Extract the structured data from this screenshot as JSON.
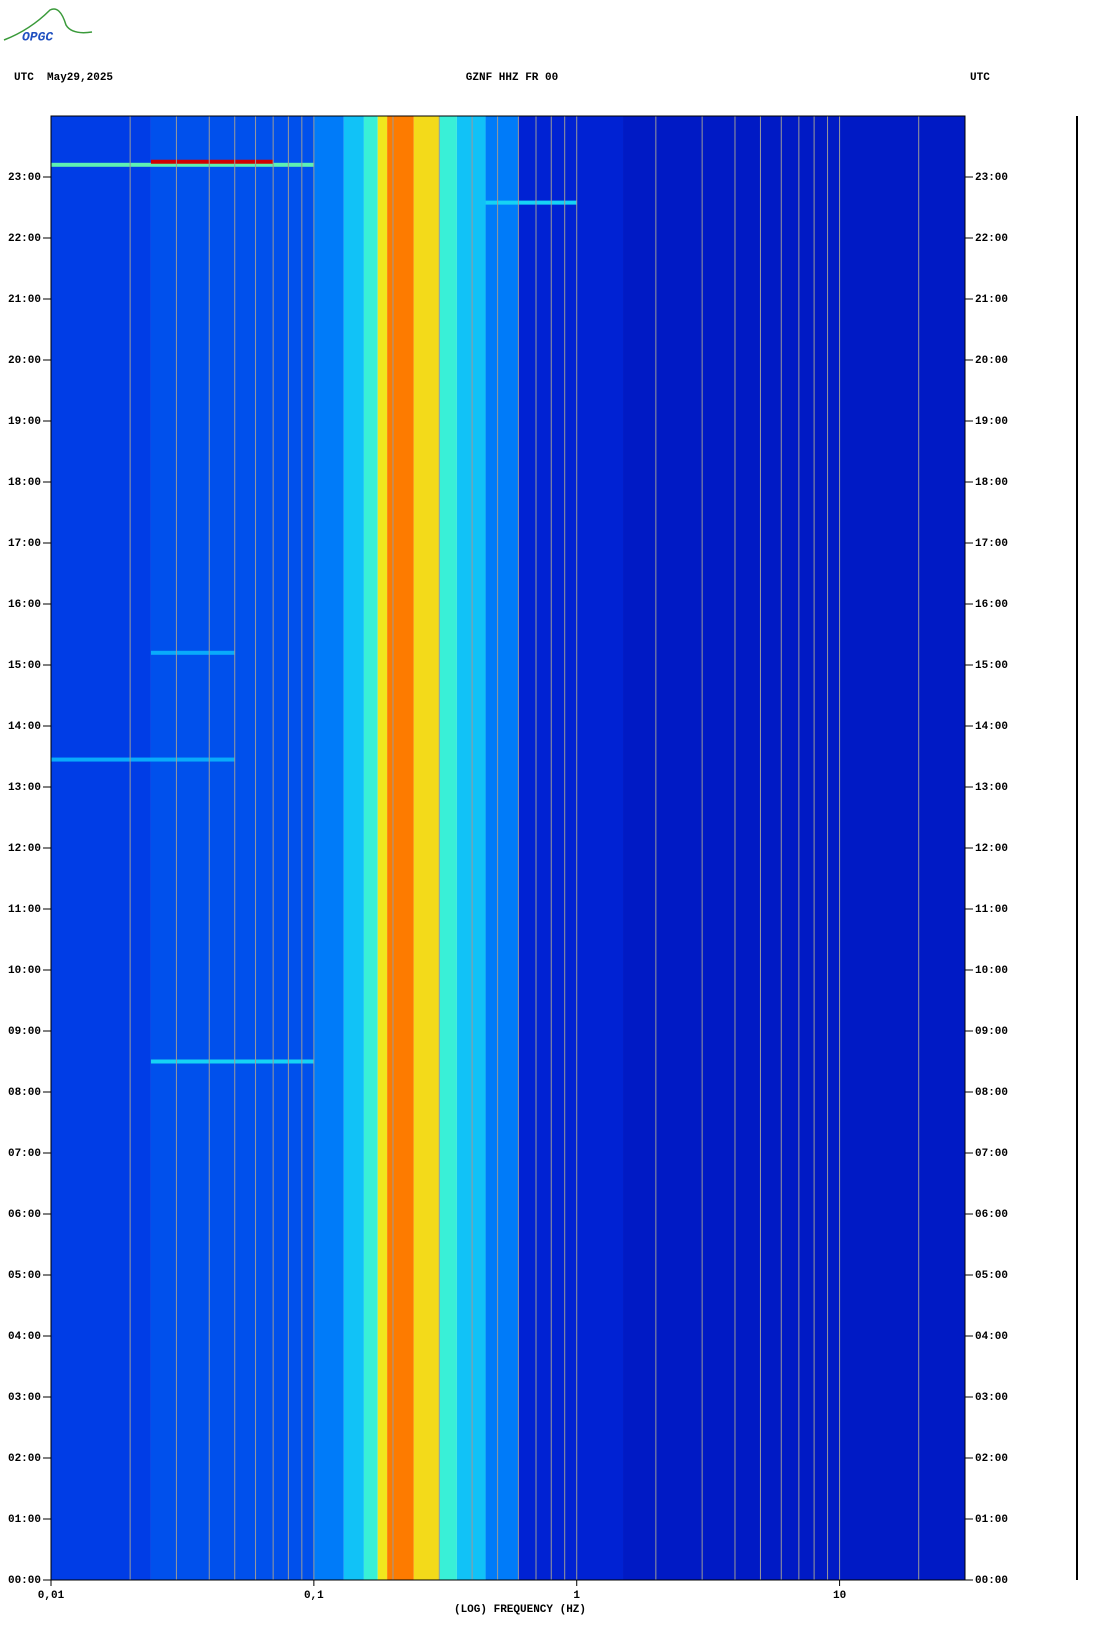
{
  "chart_data": {
    "type": "spectrogram",
    "logo": "OPGC",
    "title": "GZNF HHZ FR 00",
    "left_label": "UTC  May29,2025",
    "right_label": "UTC",
    "x_label": "(LOG) FREQUENCY (HZ)",
    "log_x": true,
    "xlim": [
      0.01,
      30
    ],
    "xticks": [
      {
        "value": 0.01,
        "label": "0,01"
      },
      {
        "value": 0.1,
        "label": "0,1"
      },
      1,
      10
    ],
    "x_grid": [
      0.02,
      0.03,
      0.04,
      0.05,
      0.06,
      0.07,
      0.08,
      0.09,
      0.1,
      0.2,
      0.3,
      0.4,
      0.5,
      0.6,
      0.7,
      0.8,
      0.9,
      1,
      2,
      3,
      4,
      5,
      6,
      7,
      8,
      9,
      10,
      20
    ],
    "grid": true,
    "ylim": [
      0,
      24
    ],
    "yticks": [
      {
        "value": 0,
        "label": "00:00"
      },
      {
        "value": 1,
        "label": "01:00"
      },
      {
        "value": 2,
        "label": "02:00"
      },
      {
        "value": 3,
        "label": "03:00"
      },
      {
        "value": 4,
        "label": "04:00"
      },
      {
        "value": 5,
        "label": "05:00"
      },
      {
        "value": 6,
        "label": "06:00"
      },
      {
        "value": 7,
        "label": "07:00"
      },
      {
        "value": 8,
        "label": "08:00"
      },
      {
        "value": 9,
        "label": "09:00"
      },
      {
        "value": 10,
        "label": "10:00"
      },
      {
        "value": 11,
        "label": "11:00"
      },
      {
        "value": 12,
        "label": "12:00"
      },
      {
        "value": 13,
        "label": "13:00"
      },
      {
        "value": 14,
        "label": "14:00"
      },
      {
        "value": 15,
        "label": "15:00"
      },
      {
        "value": 16,
        "label": "16:00"
      },
      {
        "value": 17,
        "label": "17:00"
      },
      {
        "value": 18,
        "label": "18:00"
      },
      {
        "value": 19,
        "label": "19:00"
      },
      {
        "value": 20,
        "label": "20:00"
      },
      {
        "value": 21,
        "label": "21:00"
      },
      {
        "value": 22,
        "label": "22:00"
      },
      {
        "value": 23,
        "label": "23:00"
      }
    ],
    "colormap": [
      "#000090",
      "#0028e0",
      "#0090ff",
      "#20f0f0",
      "#f0f020",
      "#ff8000",
      "#d00000"
    ],
    "bins": [
      0.01,
      0.024,
      0.1,
      0.13,
      0.155,
      0.175,
      0.19,
      0.24,
      0.3,
      0.35,
      0.45,
      0.6,
      1.5,
      30
    ],
    "power": [
      0.2,
      0.23,
      0.3,
      0.42,
      0.52,
      0.68,
      0.84,
      0.7,
      0.52,
      0.42,
      0.3,
      0.14,
      0.11
    ],
    "events": [
      {
        "time": 23.2,
        "f_min": 0.01,
        "f_max": 0.1,
        "level": 0.55
      },
      {
        "time": 23.25,
        "f_min": 0.024,
        "f_max": 0.07,
        "level": 1
      },
      {
        "time": 22.58,
        "f_min": 0.45,
        "f_max": 1,
        "level": 0.45
      },
      {
        "time": 8.5,
        "f_min": 0.024,
        "f_max": 0.1,
        "level": 0.45
      },
      {
        "time": 15.2,
        "f_min": 0.024,
        "f_max": 0.05,
        "level": 0.38
      },
      {
        "time": 13.45,
        "f_min": 0.01,
        "f_max": 0.05,
        "level": 0.38
      }
    ]
  }
}
